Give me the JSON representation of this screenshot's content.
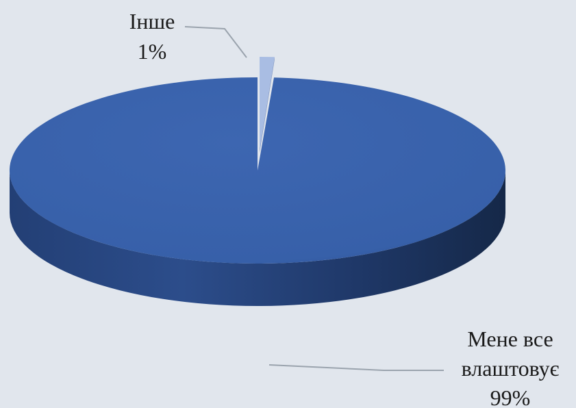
{
  "chart_data": {
    "type": "pie",
    "style": "3d",
    "title": "",
    "slices": [
      {
        "label": "Мене все влаштовує",
        "label_lines": [
          "Мене все",
          "влаштовує"
        ],
        "value": 99,
        "value_label": "99%",
        "color": "#3a62ac",
        "exploded": false
      },
      {
        "label": "Інше",
        "label_lines": [
          "Інше"
        ],
        "value": 1,
        "value_label": "1%",
        "color": "#a9bde3",
        "exploded": true
      }
    ],
    "legend": "none",
    "background": "#e1e6ed"
  }
}
